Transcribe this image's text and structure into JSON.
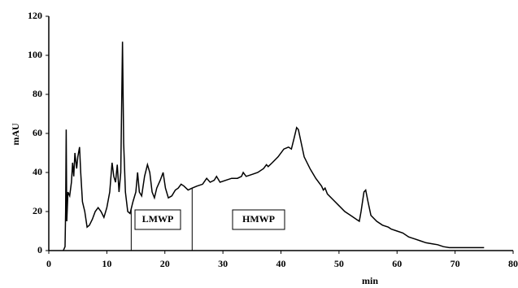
{
  "chart_data": {
    "type": "line",
    "xlabel": "min",
    "ylabel": "mAU",
    "color": "#000000",
    "x": [
      2.5,
      2.8,
      2.9,
      3.0,
      3.1,
      3.3,
      3.6,
      3.9,
      4.1,
      4.3,
      4.5,
      4.8,
      5.0,
      5.3,
      5.5,
      5.8,
      6.2,
      6.6,
      7.0,
      7.5,
      8.0,
      8.5,
      9.0,
      9.5,
      10.0,
      10.5,
      10.9,
      11.2,
      11.5,
      11.8,
      12.1,
      12.4,
      12.7,
      12.9,
      13.2,
      13.6,
      14.0,
      14.5,
      15.0,
      15.3,
      15.6,
      16.0,
      16.5,
      17.0,
      17.4,
      17.8,
      18.2,
      18.6,
      19.2,
      19.7,
      20.1,
      20.6,
      21.2,
      21.8,
      22.3,
      22.8,
      23.3,
      24.0,
      24.7,
      25.5,
      26.5,
      27.2,
      27.8,
      28.5,
      28.9,
      29.5,
      30.5,
      31.5,
      32.5,
      33.2,
      33.5,
      34.0,
      35.0,
      36.0,
      37.0,
      37.5,
      37.8,
      38.5,
      39.5,
      40.5,
      41.3,
      41.8,
      42.3,
      42.7,
      43.0,
      43.5,
      44.0,
      45.0,
      46.0,
      47.0,
      47.3,
      47.6,
      48.0,
      49.0,
      50.0,
      51.0,
      52.0,
      53.0,
      53.5,
      53.8,
      54.3,
      54.6,
      55.0,
      55.5,
      56.5,
      57.5,
      58.5,
      59.0,
      60.0,
      61.0,
      62.0,
      63.0,
      64.0,
      65.0,
      66.0,
      67.0,
      68.0,
      69.0,
      70.0,
      72.0,
      75.0
    ],
    "values": [
      0,
      2,
      20,
      62,
      15,
      30,
      28,
      35,
      45,
      38,
      50,
      42,
      48,
      53,
      40,
      25,
      20,
      12,
      13,
      16,
      20,
      22,
      20,
      17,
      22,
      30,
      45,
      38,
      35,
      44,
      30,
      40,
      107,
      55,
      30,
      20,
      19,
      25,
      30,
      40,
      30,
      28,
      38,
      44,
      40,
      30,
      27,
      32,
      36,
      40,
      32,
      27,
      28,
      31,
      32,
      34,
      33,
      31,
      32,
      33,
      34,
      37,
      35,
      36,
      38,
      35,
      36,
      37,
      37,
      38,
      40,
      38,
      39,
      40,
      42,
      44,
      43,
      45,
      48,
      52,
      53,
      52,
      58,
      63,
      62,
      55,
      48,
      42,
      37,
      33,
      31,
      32,
      29,
      26,
      23,
      20,
      18,
      16,
      15,
      20,
      30,
      31,
      25,
      18,
      15,
      13,
      12,
      11,
      10,
      9,
      7,
      6,
      5,
      4,
      3.5,
      3,
      2,
      1.5,
      1.5,
      1.5,
      1.5
    ],
    "markers": [
      {
        "x": 14.2,
        "y": 21
      },
      {
        "x": 24.7,
        "y": 32
      }
    ],
    "annotations": [
      "LMWP",
      "HMWP"
    ],
    "xlim": [
      0,
      80
    ],
    "ylim": [
      0,
      120
    ],
    "xticks": [
      0,
      10,
      20,
      30,
      40,
      50,
      60,
      70,
      80
    ],
    "yticks": [
      0,
      20,
      40,
      60,
      80,
      100,
      120
    ],
    "grid": false
  }
}
